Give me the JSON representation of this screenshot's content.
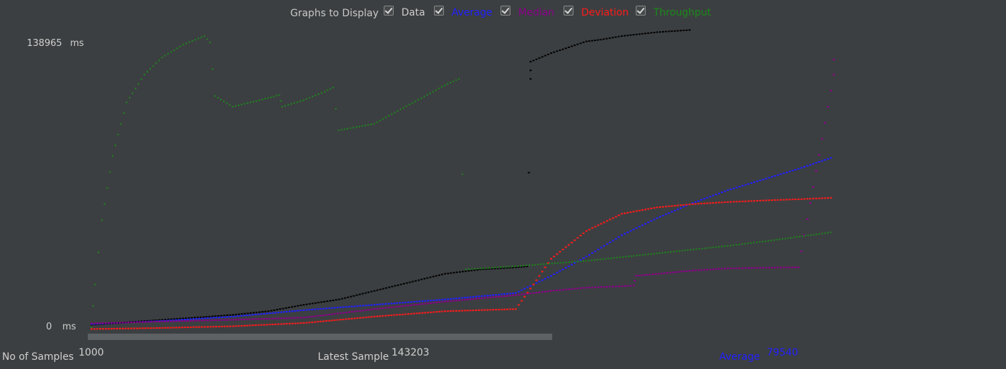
{
  "header": {
    "title": "Graphs to Display",
    "toggles": [
      {
        "label": "Data",
        "checked": true,
        "color": "#cccccc"
      },
      {
        "label": "Average",
        "checked": true,
        "color": "#1f1fff"
      },
      {
        "label": "Median",
        "checked": true,
        "color": "#8b008b"
      },
      {
        "label": "Deviation",
        "checked": true,
        "color": "#ff1a1a"
      },
      {
        "label": "Throughput",
        "checked": true,
        "color": "#1a8a1a"
      }
    ]
  },
  "axis": {
    "max_value": "138965",
    "max_unit": "ms",
    "min_value": "0",
    "min_unit": "ms"
  },
  "footer": {
    "samples_label": "No of Samples",
    "samples_value": "1000",
    "latest_label": "Latest Sample",
    "latest_value": "143203",
    "average_label": "Average",
    "average_value": "79540"
  },
  "chart_data": {
    "type": "scatter",
    "ylim": [
      0,
      138965
    ],
    "xlim": [
      0,
      1000
    ],
    "series": [
      {
        "name": "Data",
        "color": "#000000",
        "style": "dash",
        "points": [
          [
            0,
            1200
          ],
          [
            50,
            2300
          ],
          [
            100,
            3500
          ],
          [
            150,
            4600
          ],
          [
            200,
            5800
          ],
          [
            250,
            7500
          ],
          [
            300,
            10500
          ],
          [
            350,
            13000
          ],
          [
            400,
            17000
          ],
          [
            450,
            21000
          ],
          [
            500,
            25000
          ],
          [
            550,
            27000
          ],
          [
            600,
            28000
          ],
          [
            616,
            28400
          ],
          [
            621,
            116000
          ],
          [
            621,
            124000
          ],
          [
            650,
            128000
          ],
          [
            700,
            133500
          ],
          [
            720,
            134300
          ],
          [
            750,
            136000
          ],
          [
            800,
            137800
          ],
          [
            850,
            138900
          ]
        ]
      },
      {
        "name": "Average",
        "color": "#1f1fff",
        "style": "line",
        "points": [
          [
            0,
            1500
          ],
          [
            100,
            3000
          ],
          [
            200,
            5000
          ],
          [
            300,
            8000
          ],
          [
            400,
            10500
          ],
          [
            500,
            13000
          ],
          [
            600,
            16000
          ],
          [
            650,
            24000
          ],
          [
            700,
            33000
          ],
          [
            750,
            43000
          ],
          [
            800,
            51000
          ],
          [
            850,
            58000
          ],
          [
            900,
            64000
          ],
          [
            950,
            69000
          ],
          [
            1000,
            74000
          ],
          [
            1050,
            79540
          ]
        ]
      },
      {
        "name": "Median",
        "color": "#8b008b",
        "style": "line",
        "points": [
          [
            0,
            1800
          ],
          [
            100,
            2700
          ],
          [
            200,
            3500
          ],
          [
            300,
            4500
          ],
          [
            400,
            8500
          ],
          [
            500,
            12000
          ],
          [
            600,
            15000
          ],
          [
            650,
            17000
          ],
          [
            700,
            18500
          ],
          [
            750,
            19200
          ],
          [
            767,
            19500
          ],
          [
            770,
            24000
          ],
          [
            850,
            26500
          ],
          [
            900,
            27500
          ],
          [
            950,
            27800
          ],
          [
            1000,
            28000
          ],
          [
            1050,
            118000
          ],
          [
            1050,
            132000
          ]
        ]
      },
      {
        "name": "Deviation",
        "color": "#ff1a1a",
        "style": "line",
        "points": [
          [
            0,
            -800
          ],
          [
            100,
            -300
          ],
          [
            200,
            500
          ],
          [
            300,
            2000
          ],
          [
            400,
            5000
          ],
          [
            500,
            7500
          ],
          [
            600,
            8500
          ],
          [
            625,
            20000
          ],
          [
            650,
            32000
          ],
          [
            700,
            45000
          ],
          [
            750,
            53000
          ],
          [
            800,
            56000
          ],
          [
            850,
            57500
          ],
          [
            900,
            58500
          ],
          [
            950,
            59200
          ],
          [
            1000,
            59800
          ],
          [
            1050,
            60500
          ]
        ]
      },
      {
        "name": "Throughput",
        "color": "#1a8a1a",
        "style": "dots",
        "points": [
          [
            0,
            0
          ],
          [
            5,
            20000
          ],
          [
            15,
            50000
          ],
          [
            30,
            80000
          ],
          [
            50,
            105000
          ],
          [
            75,
            118000
          ],
          [
            100,
            126000
          ],
          [
            130,
            132000
          ],
          [
            160,
            136000
          ],
          [
            168,
            133000
          ],
          [
            175,
            108000
          ],
          [
            200,
            103000
          ],
          [
            250,
            107000
          ],
          [
            266,
            108500
          ],
          [
            270,
            103000
          ],
          [
            300,
            106000
          ],
          [
            330,
            110000
          ],
          [
            342,
            112000
          ],
          [
            350,
            92000
          ],
          [
            400,
            95000
          ],
          [
            450,
            104000
          ],
          [
            500,
            113000
          ],
          [
            520,
            116000
          ],
          [
            530,
            27000
          ],
          [
            600,
            28500
          ],
          [
            700,
            31000
          ],
          [
            800,
            34500
          ],
          [
            900,
            38000
          ],
          [
            950,
            40000
          ],
          [
            1050,
            44500
          ]
        ]
      }
    ]
  }
}
